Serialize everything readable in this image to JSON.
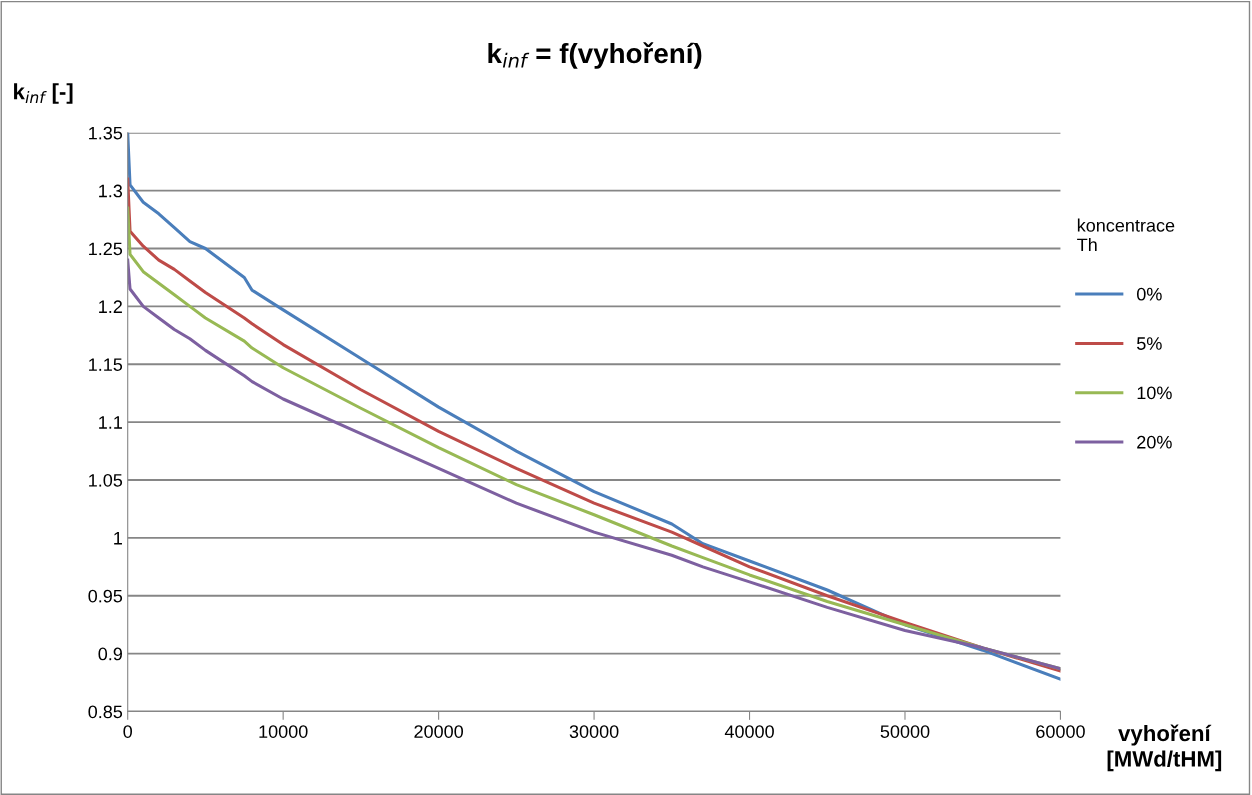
{
  "chart_data": {
    "type": "line",
    "title": "k$_{inf}$ = f(vyhoření)",
    "xlabel": "vyhoření\n[MWd/tHM]",
    "ylabel": "k$_{inf}$ [-]",
    "legend_title": "koncentrace\nTh",
    "x": [
      0,
      150,
      1000,
      2000,
      3000,
      4000,
      5000,
      7500,
      8000,
      10000,
      15000,
      20000,
      25000,
      30000,
      35000,
      37000,
      40000,
      45000,
      50000,
      55000,
      60000
    ],
    "series": [
      {
        "name": "0%",
        "color": "#4a7ebb",
        "values": [
          1.35,
          1.305,
          1.29,
          1.28,
          1.268,
          1.256,
          1.25,
          1.225,
          1.214,
          1.197,
          1.155,
          1.113,
          1.075,
          1.04,
          1.012,
          0.995,
          0.98,
          0.955,
          0.925,
          0.903,
          0.878
        ]
      },
      {
        "name": "5%",
        "color": "#be4b48",
        "values": [
          1.31,
          1.265,
          1.252,
          1.24,
          1.232,
          1.222,
          1.212,
          1.19,
          1.185,
          1.167,
          1.128,
          1.092,
          1.06,
          1.03,
          1.005,
          0.993,
          0.975,
          0.95,
          0.927,
          0.905,
          0.885
        ]
      },
      {
        "name": "10%",
        "color": "#98b954",
        "values": [
          1.285,
          1.245,
          1.23,
          1.22,
          1.21,
          1.2,
          1.19,
          1.17,
          1.164,
          1.147,
          1.112,
          1.078,
          1.046,
          1.02,
          0.993,
          0.983,
          0.968,
          0.945,
          0.925,
          0.905,
          0.887
        ]
      },
      {
        "name": "20%",
        "color": "#7d60a0",
        "values": [
          1.24,
          1.215,
          1.2,
          1.19,
          1.18,
          1.172,
          1.162,
          1.14,
          1.135,
          1.12,
          1.09,
          1.06,
          1.03,
          1.005,
          0.985,
          0.975,
          0.962,
          0.94,
          0.92,
          0.905,
          0.887
        ]
      }
    ],
    "xlim": [
      0,
      60000
    ],
    "xticks": [
      0,
      10000,
      20000,
      30000,
      40000,
      50000,
      60000
    ],
    "ylim": [
      0.85,
      1.35
    ],
    "yticks": [
      0.85,
      0.9,
      0.95,
      1,
      1.05,
      1.1,
      1.15,
      1.2,
      1.25,
      1.3,
      1.35
    ],
    "grid": "y",
    "legend": "right",
    "marker": "none",
    "line_style": "solid"
  }
}
